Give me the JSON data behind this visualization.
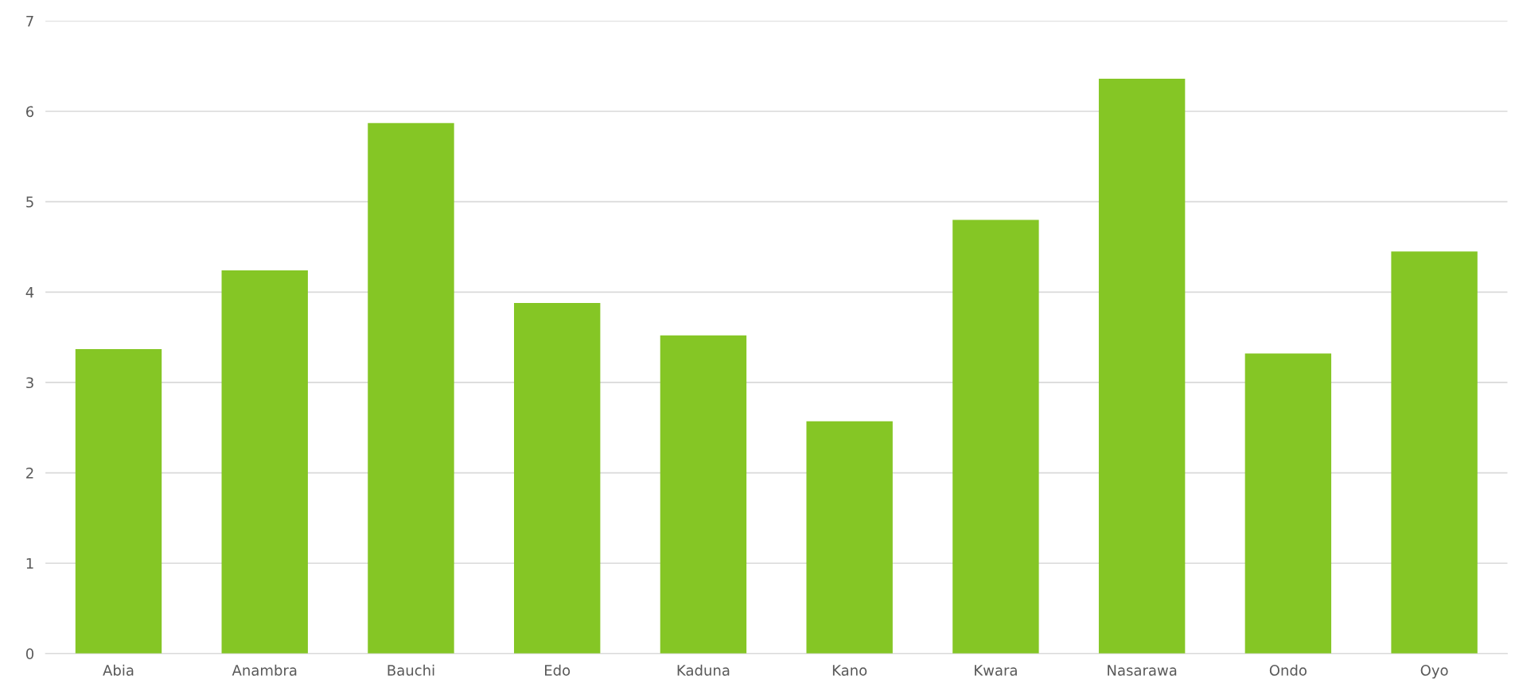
{
  "chart_data": {
    "type": "bar",
    "categories": [
      "Abia",
      "Anambra",
      "Bauchi",
      "Edo",
      "Kaduna",
      "Kano",
      "Kwara",
      "Nasarawa",
      "Ondo",
      "Oyo"
    ],
    "values": [
      3.37,
      4.24,
      5.87,
      3.88,
      3.52,
      2.57,
      4.8,
      6.36,
      3.32,
      4.45
    ],
    "color": "#85c625",
    "ylim": [
      0,
      7
    ],
    "yticks": [
      0,
      1,
      2,
      3,
      4,
      5,
      6,
      7
    ],
    "grid": "y"
  }
}
